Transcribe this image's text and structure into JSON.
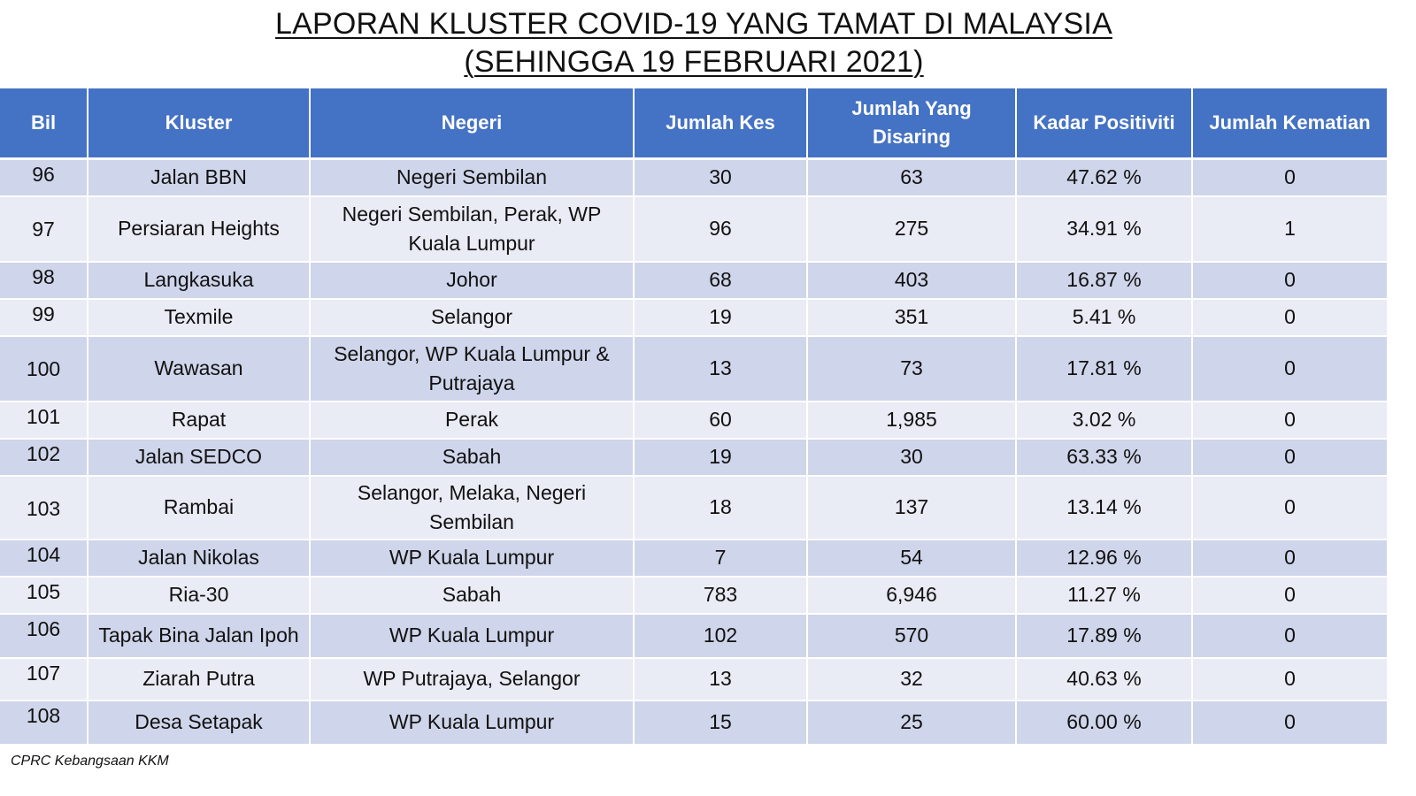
{
  "title": {
    "line1": "LAPORAN KLUSTER COVID-19 YANG TAMAT DI MALAYSIA",
    "line2": "(SEHINGGA  19 FEBRUARI 2021)"
  },
  "table": {
    "headers": [
      "Bil",
      "Kluster",
      "Negeri",
      "Jumlah Kes",
      "Jumlah Yang Disaring",
      "Kadar Positiviti",
      "Jumlah Kematian"
    ],
    "rows": [
      {
        "bil": "96",
        "kluster": "Jalan BBN",
        "negeri": "Negeri Sembilan",
        "kes": "30",
        "disaring": "63",
        "positiviti": "47.62 %",
        "kematian": "0"
      },
      {
        "bil": "97",
        "kluster": "Persiaran Heights",
        "negeri": "Negeri Sembilan, Perak, WP Kuala Lumpur",
        "kes": "96",
        "disaring": "275",
        "positiviti": "34.91 %",
        "kematian": "1"
      },
      {
        "bil": "98",
        "kluster": "Langkasuka",
        "negeri": "Johor",
        "kes": "68",
        "disaring": "403",
        "positiviti": "16.87 %",
        "kematian": "0"
      },
      {
        "bil": "99",
        "kluster": "Texmile",
        "negeri": "Selangor",
        "kes": "19",
        "disaring": "351",
        "positiviti": "5.41 %",
        "kematian": "0"
      },
      {
        "bil": "100",
        "kluster": "Wawasan",
        "negeri": "Selangor, WP Kuala Lumpur & Putrajaya",
        "kes": "13",
        "disaring": "73",
        "positiviti": "17.81 %",
        "kematian": "0"
      },
      {
        "bil": "101",
        "kluster": "Rapat",
        "negeri": "Perak",
        "kes": "60",
        "disaring": "1,985",
        "positiviti": "3.02 %",
        "kematian": "0"
      },
      {
        "bil": "102",
        "kluster": "Jalan SEDCO",
        "negeri": "Sabah",
        "kes": "19",
        "disaring": "30",
        "positiviti": "63.33 %",
        "kematian": "0"
      },
      {
        "bil": "103",
        "kluster": "Rambai",
        "negeri": "Selangor, Melaka, Negeri Sembilan",
        "kes": "18",
        "disaring": "137",
        "positiviti": "13.14 %",
        "kematian": "0"
      },
      {
        "bil": "104",
        "kluster": "Jalan Nikolas",
        "negeri": "WP Kuala Lumpur",
        "kes": "7",
        "disaring": "54",
        "positiviti": "12.96 %",
        "kematian": "0"
      },
      {
        "bil": "105",
        "kluster": "Ria-30",
        "negeri": "Sabah",
        "kes": "783",
        "disaring": "6,946",
        "positiviti": "11.27 %",
        "kematian": "0"
      },
      {
        "bil": "106",
        "kluster": "Tapak Bina Jalan Ipoh",
        "negeri": "WP Kuala Lumpur",
        "kes": "102",
        "disaring": "570",
        "positiviti": "17.89 %",
        "kematian": "0"
      },
      {
        "bil": "107",
        "kluster": "Ziarah Putra",
        "negeri": "WP Putrajaya, Selangor",
        "kes": "13",
        "disaring": "32",
        "positiviti": "40.63 %",
        "kematian": "0"
      },
      {
        "bil": "108",
        "kluster": "Desa Setapak",
        "negeri": "WP Kuala Lumpur",
        "kes": "15",
        "disaring": "25",
        "positiviti": "60.00 %",
        "kematian": "0"
      }
    ]
  },
  "footer": "CPRC Kebangsaan KKM"
}
